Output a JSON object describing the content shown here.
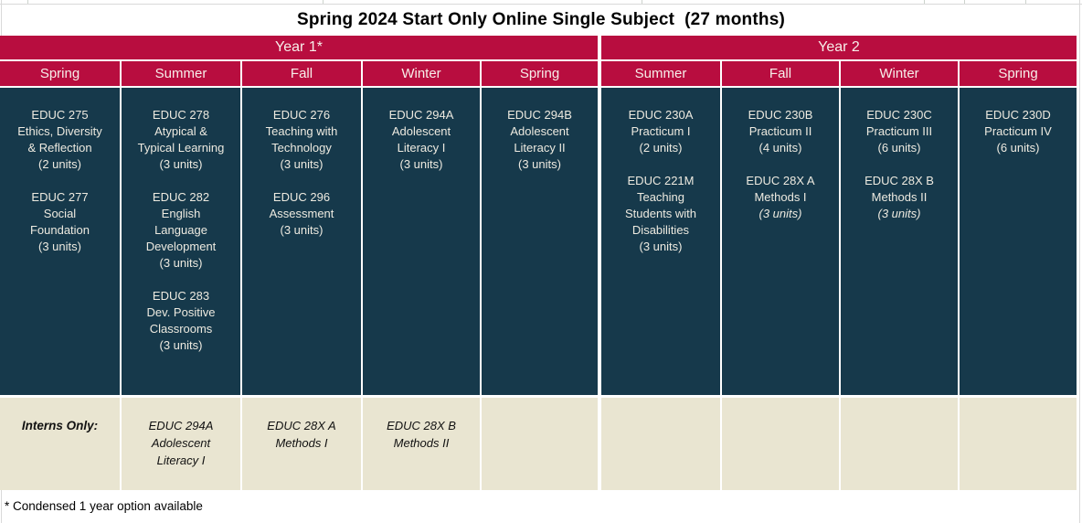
{
  "title": "Spring 2024 Start Only Online Single Subject  (27 months)",
  "footnote": "* Condensed 1 year option available",
  "colors": {
    "crimson": "#B80D3F",
    "teal": "#16394B",
    "beige": "#E9E5D1"
  },
  "year_headers": [
    {
      "label": "Year 1*",
      "colspan": 5
    },
    {
      "label": "Year 2",
      "colspan": 4
    }
  ],
  "seasons": [
    "Spring",
    "Summer",
    "Fall",
    "Winter",
    "Spring",
    "Summer",
    "Fall",
    "Winter",
    "Spring"
  ],
  "body_columns": [
    {
      "season": "Spring Year 1",
      "courses": [
        {
          "text": "EDUC 275\nEthics, Diversity\n& Reflection\n(2 units)"
        },
        {
          "text": "EDUC 277\nSocial\nFoundation\n(3 units)"
        }
      ]
    },
    {
      "season": "Summer Year 1",
      "courses": [
        {
          "text": "EDUC 278\nAtypical &\nTypical Learning\n(3 units)"
        },
        {
          "text": "EDUC 282\nEnglish\nLanguage\nDevelopment\n(3 units)"
        },
        {
          "text": "EDUC 283\nDev. Positive\nClassrooms\n(3 units)"
        }
      ]
    },
    {
      "season": "Fall Year 1",
      "courses": [
        {
          "text": "EDUC 276\nTeaching with\nTechnology\n(3 units)"
        },
        {
          "text": "EDUC 296\nAssessment\n(3 units)"
        }
      ]
    },
    {
      "season": "Winter Year 1",
      "courses": [
        {
          "text": "EDUC 294A\nAdolescent\nLiteracy I\n(3 units)"
        }
      ]
    },
    {
      "season": "Spring Year 1",
      "courses": [
        {
          "text": "EDUC 294B\nAdolescent\nLiteracy II\n(3 units)"
        }
      ]
    },
    {
      "season": "Summer Year 2",
      "courses": [
        {
          "text": "EDUC 230A\nPracticum I\n(2 units)"
        },
        {
          "text": "EDUC 221M\nTeaching\nStudents with\nDisabilities\n(3 units)"
        }
      ]
    },
    {
      "season": "Fall Year 2",
      "courses": [
        {
          "text": "EDUC 230B\nPracticum II\n(4 units)"
        },
        {
          "text": "EDUC 28X A\nMethods I",
          "italic_suffix": "(3 units)"
        }
      ]
    },
    {
      "season": "Winter Year 2",
      "courses": [
        {
          "text": "EDUC 230C\nPracticum III\n(6 units)"
        },
        {
          "text": "EDUC 28X B\nMethods II",
          "italic_suffix": "(3 units)"
        }
      ]
    },
    {
      "season": "Spring Year 2",
      "courses": [
        {
          "text": "EDUC 230D\nPracticum IV\n(6 units)"
        }
      ]
    }
  ],
  "interns_row": {
    "cells": [
      {
        "label": true,
        "text": "Interns Only:"
      },
      {
        "text": "EDUC 294A\nAdolescent\nLiteracy I"
      },
      {
        "text": "EDUC 28X A\nMethods I"
      },
      {
        "text": "EDUC 28X B\nMethods II"
      },
      {
        "text": ""
      },
      {
        "text": ""
      },
      {
        "text": ""
      },
      {
        "text": ""
      },
      {
        "text": ""
      }
    ]
  }
}
